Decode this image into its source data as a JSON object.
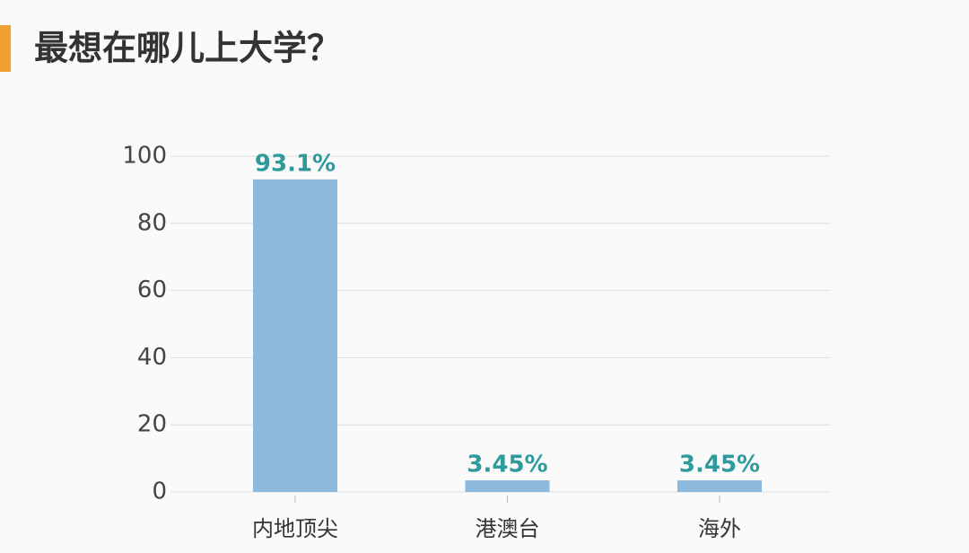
{
  "chart_data": {
    "type": "bar",
    "title": "最想在哪儿上大学？",
    "categories": [
      "内地顶尖",
      "港澳台",
      "海外"
    ],
    "values": [
      93.1,
      3.45,
      3.45
    ],
    "value_labels": [
      "93.1%",
      "3.45%",
      "3.45%"
    ],
    "color": "#8cb9de",
    "ylim": [
      0,
      100
    ],
    "yticks": [
      0,
      20,
      40,
      60,
      80,
      100
    ],
    "grid": true
  }
}
